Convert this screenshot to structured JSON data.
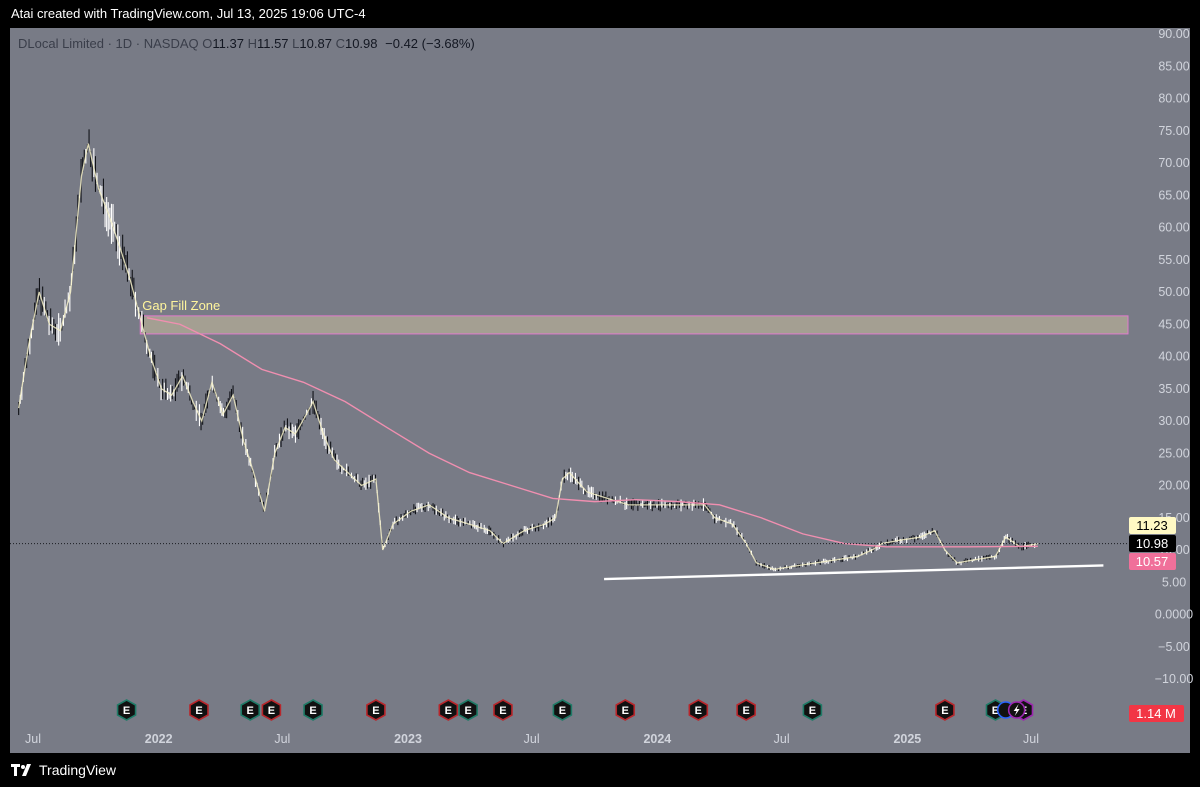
{
  "header": {
    "attribution": "Atai created with TradingView.com, Jul 13, 2025 19:06 UTC-4"
  },
  "legend": {
    "symbol": "DLocal Limited · 1D · NASDAQ",
    "o_label": "O",
    "o_value": "11.37",
    "h_label": "H",
    "h_value": "11.57",
    "l_label": "L",
    "l_value": "10.87",
    "c_label": "C",
    "c_value": "10.98",
    "change": "−0.42 (−3.68%)"
  },
  "footer": {
    "brand": "TradingView"
  },
  "colors": {
    "background": "#787b86",
    "ma_line": "#f08fb0",
    "short_ma_line": "#f5f0c8",
    "zone_fill": "#a8a393",
    "zone_border": "#e07acc",
    "trendline": "#ffffff",
    "earnings_green": "#1e7a66",
    "earnings_red": "#b8262b",
    "price_tag_yellow": "#fff9c4",
    "price_tag_black": "#000000",
    "price_tag_pink": "#f0709a",
    "volume_tag": "#f23645"
  },
  "chart_data": {
    "type": "candlestick",
    "y_axis_ticks": [
      "90.00",
      "85.00",
      "80.00",
      "75.00",
      "70.00",
      "65.00",
      "60.00",
      "55.00",
      "50.00",
      "45.00",
      "40.00",
      "35.00",
      "30.00",
      "25.00",
      "20.00",
      "15.00",
      "10.00",
      "5.00",
      "0.0000",
      "−5.00",
      "−10.00"
    ],
    "ylim": [
      -10,
      90
    ],
    "x_axis_labels": [
      {
        "label": "Jul",
        "bold": false,
        "date": "2021-07"
      },
      {
        "label": "2022",
        "bold": true,
        "date": "2022-01"
      },
      {
        "label": "Jul",
        "bold": false,
        "date": "2022-07"
      },
      {
        "label": "2023",
        "bold": true,
        "date": "2023-01"
      },
      {
        "label": "Jul",
        "bold": false,
        "date": "2023-07"
      },
      {
        "label": "2024",
        "bold": true,
        "date": "2024-01"
      },
      {
        "label": "Jul",
        "bold": false,
        "date": "2024-07"
      },
      {
        "label": "2025",
        "bold": true,
        "date": "2025-01"
      },
      {
        "label": "Jul",
        "bold": false,
        "date": "2025-07"
      }
    ],
    "price_path": [
      [
        "2021-06-10",
        32
      ],
      [
        "2021-06-25",
        42
      ],
      [
        "2021-07-10",
        50
      ],
      [
        "2021-07-25",
        45
      ],
      [
        "2021-08-10",
        44
      ],
      [
        "2021-08-25",
        50
      ],
      [
        "2021-09-10",
        68
      ],
      [
        "2021-09-20",
        73
      ],
      [
        "2021-10-05",
        66
      ],
      [
        "2021-10-20",
        62
      ],
      [
        "2021-11-05",
        57
      ],
      [
        "2021-11-20",
        52
      ],
      [
        "2021-12-05",
        46
      ],
      [
        "2021-12-20",
        40
      ],
      [
        "2022-01-05",
        35
      ],
      [
        "2022-01-20",
        34
      ],
      [
        "2022-02-05",
        37
      ],
      [
        "2022-02-20",
        33
      ],
      [
        "2022-03-05",
        30
      ],
      [
        "2022-03-20",
        36
      ],
      [
        "2022-04-05",
        31
      ],
      [
        "2022-04-20",
        34
      ],
      [
        "2022-05-05",
        27
      ],
      [
        "2022-05-20",
        22
      ],
      [
        "2022-06-05",
        16
      ],
      [
        "2022-06-20",
        25
      ],
      [
        "2022-07-05",
        29
      ],
      [
        "2022-07-20",
        28
      ],
      [
        "2022-08-05",
        31
      ],
      [
        "2022-08-15",
        33
      ],
      [
        "2022-08-30",
        28
      ],
      [
        "2022-09-15",
        24
      ],
      [
        "2022-10-05",
        22
      ],
      [
        "2022-10-25",
        20
      ],
      [
        "2022-11-15",
        21
      ],
      [
        "2022-11-25",
        10
      ],
      [
        "2022-12-10",
        14
      ],
      [
        "2023-01-05",
        16
      ],
      [
        "2023-02-01",
        17
      ],
      [
        "2023-03-01",
        15
      ],
      [
        "2023-04-01",
        14
      ],
      [
        "2023-05-01",
        13
      ],
      [
        "2023-05-20",
        11
      ],
      [
        "2023-06-20",
        13
      ],
      [
        "2023-07-20",
        14
      ],
      [
        "2023-08-05",
        15
      ],
      [
        "2023-08-15",
        21
      ],
      [
        "2023-08-25",
        22
      ],
      [
        "2023-09-20",
        19
      ],
      [
        "2023-10-20",
        18
      ],
      [
        "2023-11-20",
        17
      ],
      [
        "2023-12-20",
        17
      ],
      [
        "2024-01-20",
        17
      ],
      [
        "2024-02-20",
        17
      ],
      [
        "2024-03-10",
        17
      ],
      [
        "2024-03-25",
        15
      ],
      [
        "2024-04-20",
        14
      ],
      [
        "2024-05-10",
        11
      ],
      [
        "2024-05-25",
        8
      ],
      [
        "2024-06-20",
        7
      ],
      [
        "2024-07-20",
        7.5
      ],
      [
        "2024-08-20",
        8
      ],
      [
        "2024-09-20",
        8.5
      ],
      [
        "2024-10-20",
        9
      ],
      [
        "2024-11-10",
        10
      ],
      [
        "2024-11-25",
        11
      ],
      [
        "2024-12-20",
        11.5
      ],
      [
        "2025-01-20",
        12
      ],
      [
        "2025-02-10",
        13
      ],
      [
        "2025-02-25",
        10
      ],
      [
        "2025-03-15",
        8
      ],
      [
        "2025-04-10",
        8.5
      ],
      [
        "2025-05-10",
        9
      ],
      [
        "2025-05-25",
        12
      ],
      [
        "2025-06-15",
        10.5
      ],
      [
        "2025-07-11",
        10.98
      ]
    ],
    "ma_path": [
      [
        "2021-12-15",
        46
      ],
      [
        "2022-02-01",
        45
      ],
      [
        "2022-04-01",
        42
      ],
      [
        "2022-06-01",
        38
      ],
      [
        "2022-08-01",
        36
      ],
      [
        "2022-10-01",
        33
      ],
      [
        "2022-12-01",
        29
      ],
      [
        "2023-02-01",
        25
      ],
      [
        "2023-04-01",
        22
      ],
      [
        "2023-06-01",
        20
      ],
      [
        "2023-08-01",
        18
      ],
      [
        "2023-10-01",
        17.5
      ],
      [
        "2023-12-01",
        17.8
      ],
      [
        "2024-02-01",
        17.5
      ],
      [
        "2024-04-01",
        17
      ],
      [
        "2024-06-01",
        15
      ],
      [
        "2024-08-01",
        12.5
      ],
      [
        "2024-10-01",
        11
      ],
      [
        "2024-12-01",
        10.5
      ],
      [
        "2025-02-01",
        10.5
      ],
      [
        "2025-04-01",
        10.5
      ],
      [
        "2025-07-11",
        10.57
      ]
    ],
    "trendline": {
      "start": [
        "2023-10-15",
        5.5
      ],
      "end": [
        "2025-10-15",
        7.6
      ]
    },
    "zone": {
      "label": "Gap Fill Zone",
      "y_low": 43.5,
      "y_high": 46.3,
      "x_start": "2021-12-05"
    },
    "current_close": 10.98,
    "price_tags": [
      {
        "value": "11.23",
        "price": 11.23,
        "style": "yellow"
      },
      {
        "value": "10.98",
        "price": 10.98,
        "style": "black"
      },
      {
        "value": "10.57",
        "price": 10.57,
        "style": "pink"
      }
    ],
    "volume_tag": "1.14 M",
    "earnings": [
      {
        "date": "2021-11-15",
        "type": "green",
        "label": "E"
      },
      {
        "date": "2022-03-01",
        "type": "red",
        "label": "E"
      },
      {
        "date": "2022-05-15",
        "type": "green",
        "label": "E"
      },
      {
        "date": "2022-06-15",
        "type": "red",
        "label": "E"
      },
      {
        "date": "2022-08-15",
        "type": "green",
        "label": "E"
      },
      {
        "date": "2022-11-15",
        "type": "red",
        "label": "E"
      },
      {
        "date": "2023-03-01",
        "type": "red",
        "label": "E"
      },
      {
        "date": "2023-03-30",
        "type": "green",
        "label": "E"
      },
      {
        "date": "2023-05-20",
        "type": "red",
        "label": "E"
      },
      {
        "date": "2023-08-15",
        "type": "green",
        "label": "E"
      },
      {
        "date": "2023-11-15",
        "type": "red",
        "label": "E"
      },
      {
        "date": "2024-03-01",
        "type": "red",
        "label": "E"
      },
      {
        "date": "2024-05-10",
        "type": "red",
        "label": "E"
      },
      {
        "date": "2024-08-15",
        "type": "green",
        "label": "E"
      },
      {
        "date": "2025-02-25",
        "type": "red",
        "label": "E"
      },
      {
        "date": "2025-05-10",
        "type": "green",
        "label": "E"
      },
      {
        "date": "2025-06-20",
        "type": "purple",
        "label": "E"
      }
    ],
    "dividends_icons": [
      {
        "date": "2025-05-25",
        "type": "blue-circle"
      },
      {
        "date": "2025-06-10",
        "type": "lightning"
      }
    ]
  }
}
